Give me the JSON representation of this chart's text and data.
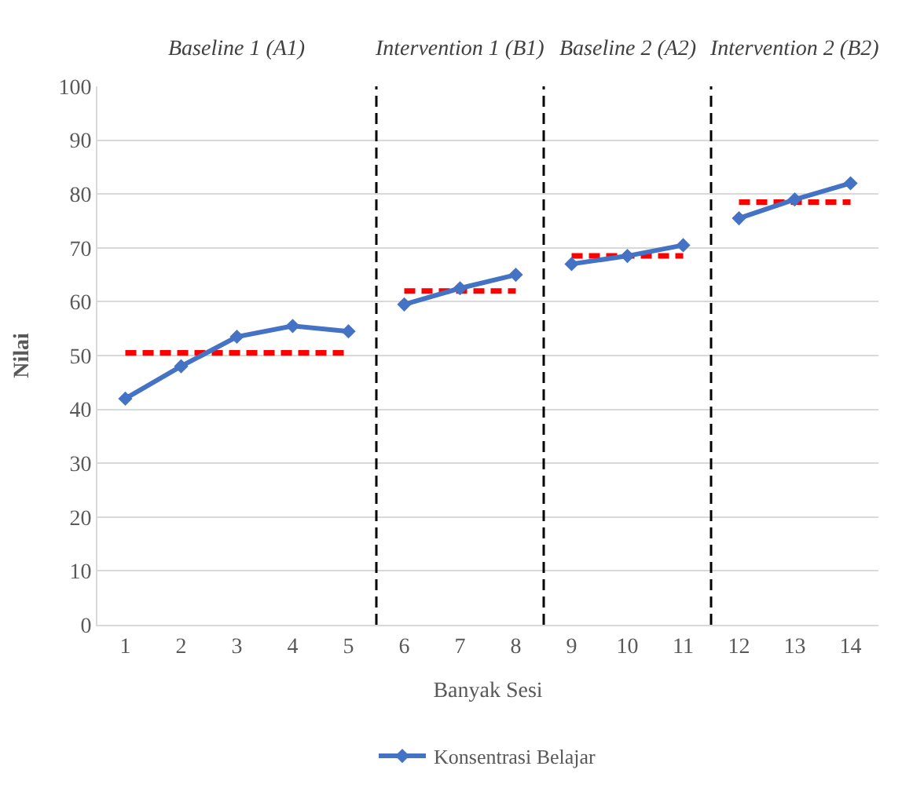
{
  "chart_data": {
    "type": "line",
    "xlabel": "Banyak Sesi",
    "ylabel": "Nilai",
    "xlim": [
      0.5,
      14.5
    ],
    "xticks": [
      1,
      2,
      3,
      4,
      5,
      6,
      7,
      8,
      9,
      10,
      11,
      12,
      13,
      14
    ],
    "ylim": [
      0,
      100
    ],
    "yticks": [
      0,
      10,
      20,
      30,
      40,
      50,
      60,
      70,
      80,
      90,
      100
    ],
    "grid": "y",
    "legend": "bottom",
    "marker": "diamond",
    "line_style": "solid",
    "series": [
      {
        "name": "Konsentrasi Belajar",
        "color": "#4472c4",
        "x": [
          1,
          2,
          3,
          4,
          5
        ],
        "values": [
          42,
          48,
          53.5,
          55.5,
          54.5
        ]
      },
      {
        "color": "#4472c4",
        "x": [
          6,
          7,
          8
        ],
        "values": [
          59.5,
          62.5,
          65
        ]
      },
      {
        "color": "#4472c4",
        "x": [
          9,
          10,
          11
        ],
        "values": [
          67,
          68.5,
          70.5
        ]
      },
      {
        "color": "#4472c4",
        "x": [
          12,
          13,
          14
        ],
        "values": [
          75.5,
          79,
          82
        ]
      },
      {
        "color": "#ff0000",
        "x": [
          1,
          5
        ],
        "values": [
          50.5,
          50.5
        ],
        "marker": "none",
        "line_style": "dashed"
      },
      {
        "color": "#ff0000",
        "x": [
          6,
          8
        ],
        "values": [
          62,
          62
        ],
        "marker": "none",
        "line_style": "dashed"
      },
      {
        "color": "#ff0000",
        "x": [
          9,
          11
        ],
        "values": [
          68.5,
          68.5
        ],
        "marker": "none",
        "line_style": "dashed"
      },
      {
        "color": "#ff0000",
        "x": [
          12,
          14
        ],
        "values": [
          78.5,
          78.5
        ],
        "marker": "none",
        "line_style": "dashed"
      }
    ],
    "ref_lines": [
      {
        "axis": "x",
        "value": 5.5,
        "color": "#000000",
        "line_style": "dashed"
      },
      {
        "axis": "x",
        "value": 8.5,
        "color": "#000000",
        "line_style": "dashed"
      },
      {
        "axis": "x",
        "value": 11.5,
        "color": "#000000",
        "line_style": "dashed"
      }
    ],
    "annotations": [
      "Baseline 1 (A1)",
      "Intervention 1 (B1)",
      "Baseline 2 (A2)",
      "Intervention 2 (B2)"
    ]
  }
}
